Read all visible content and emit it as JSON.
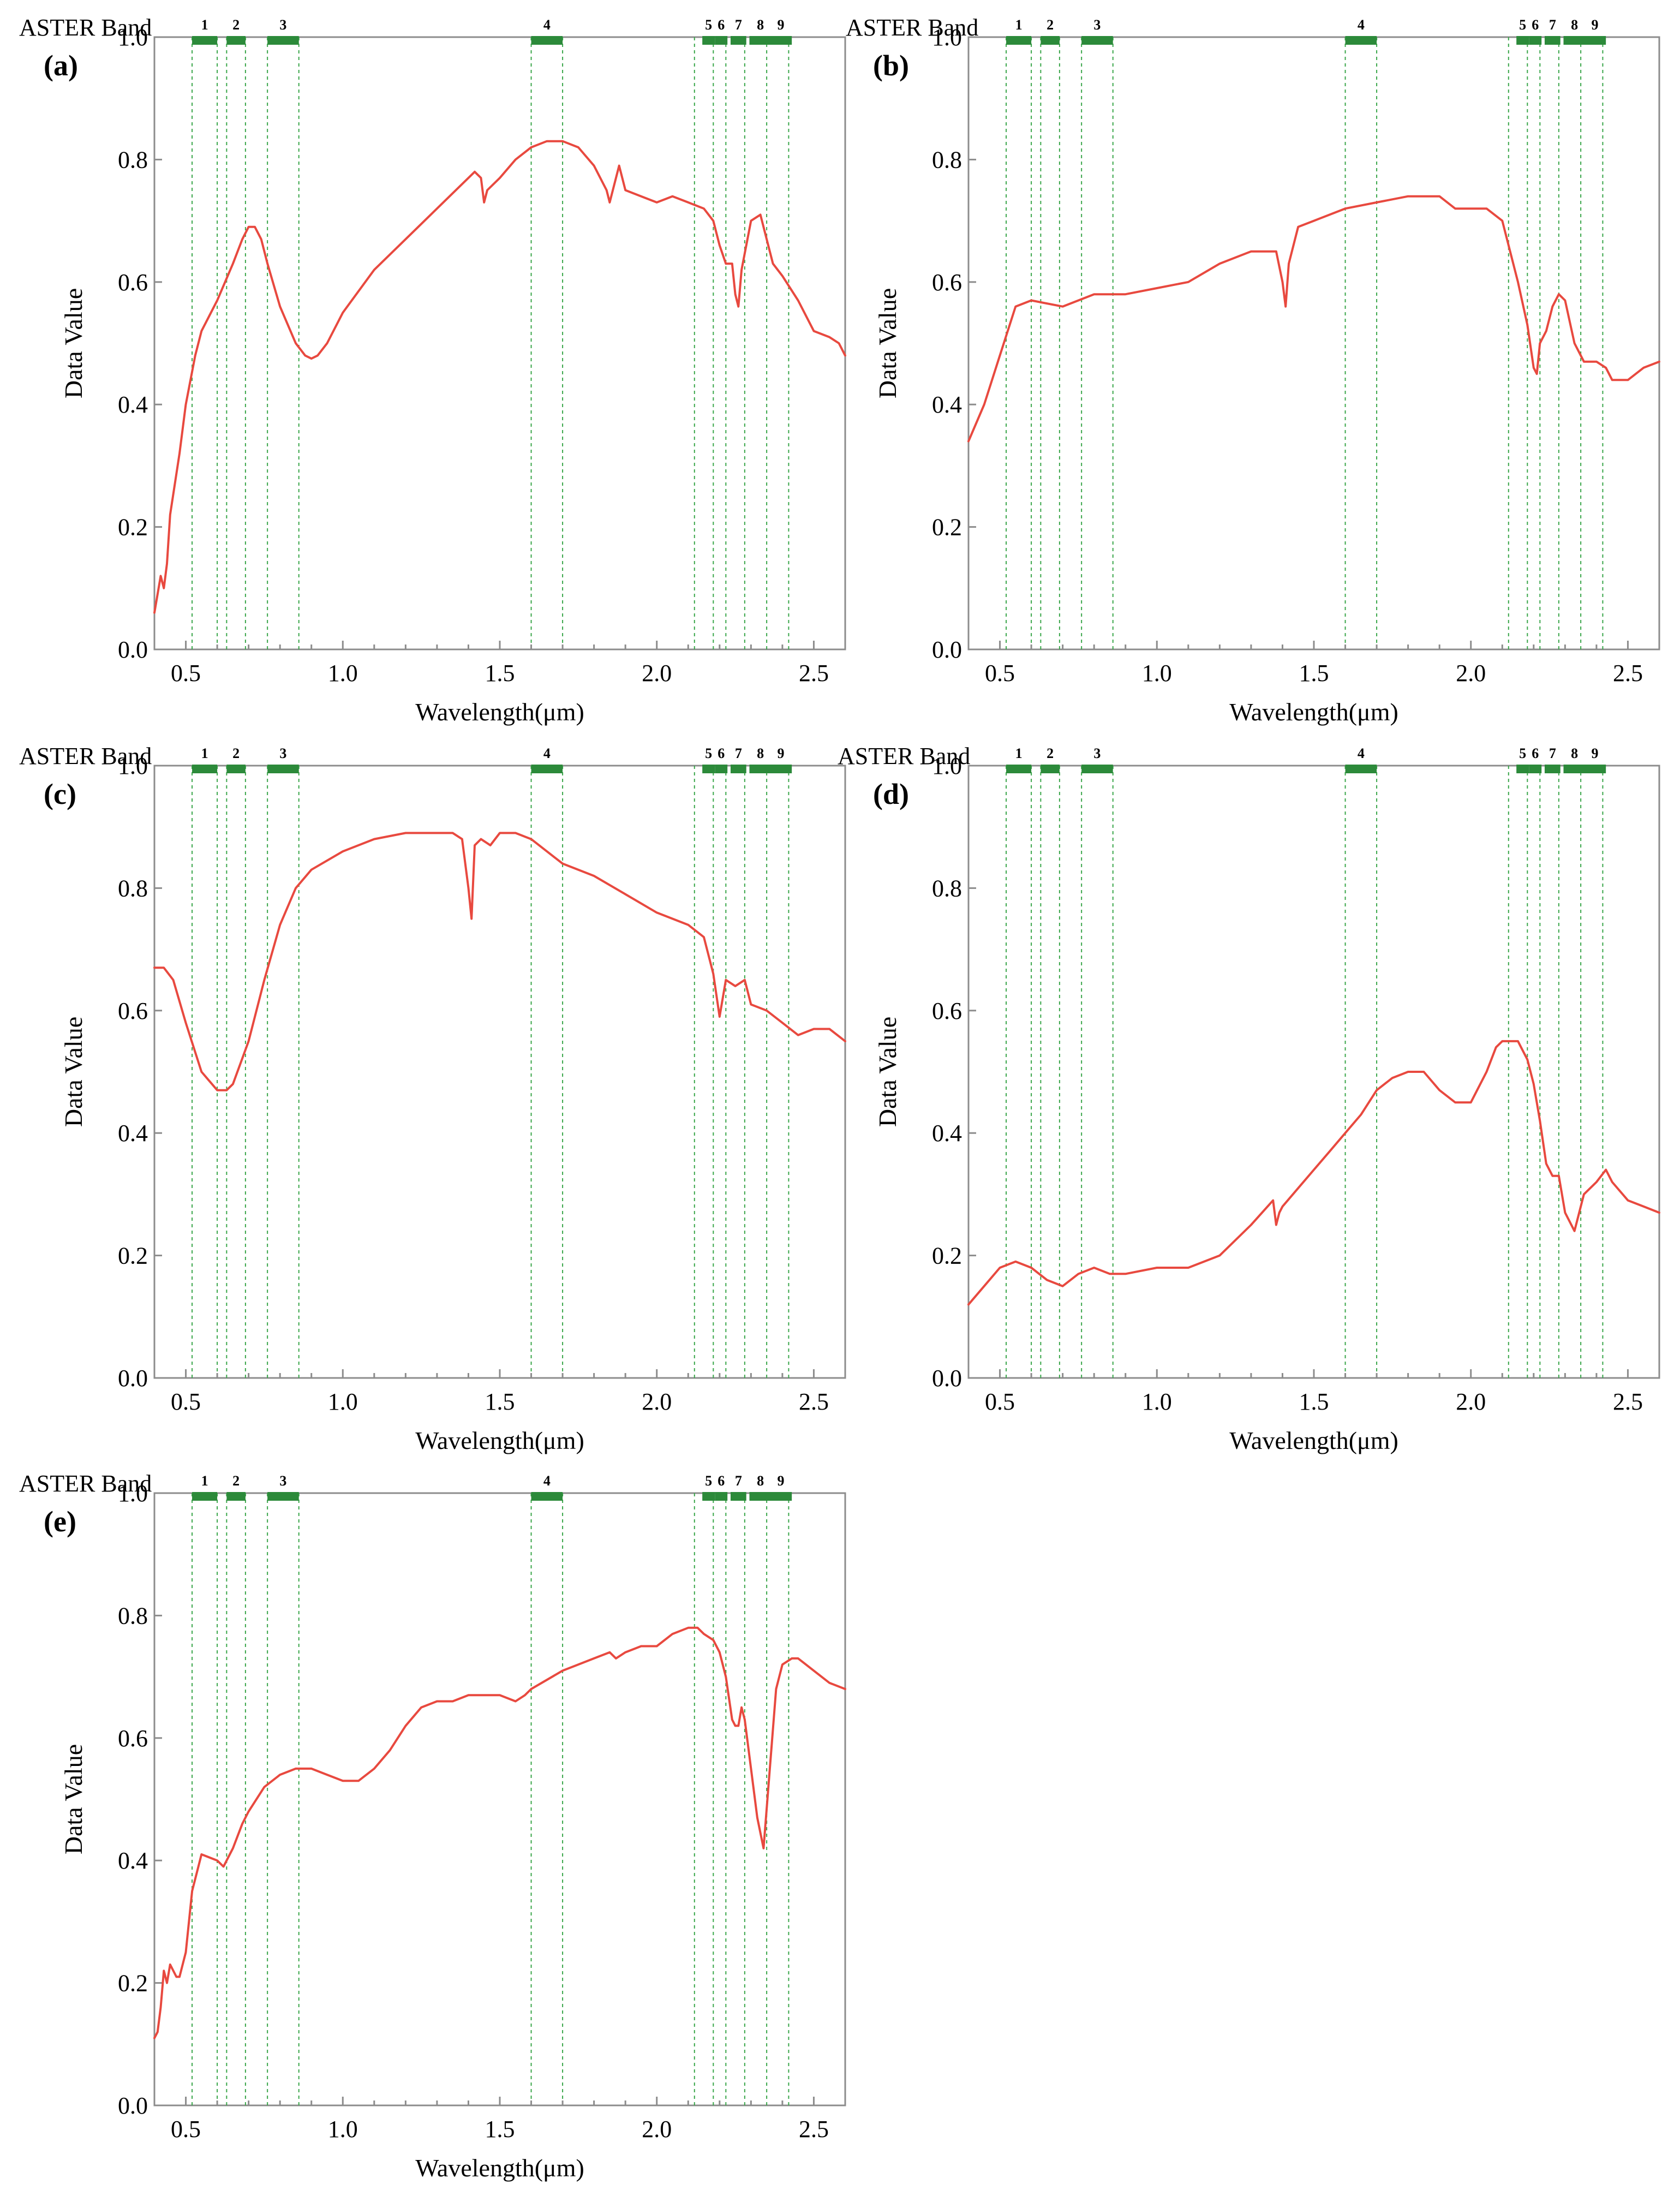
{
  "band_title": "ASTER Band",
  "colors": {
    "spectrum": "#e8493f",
    "band": "#2c8a3a",
    "axis": "#8c8c8c",
    "guide": "#3aa64a"
  },
  "chart_data": [
    {
      "panel": "(a)",
      "type": "line",
      "xlabel": "Wavelength(μm)",
      "ylabel": "Data Value",
      "xlim": [
        0.4,
        2.6
      ],
      "ylim": [
        0.0,
        1.0
      ],
      "xticks": [
        "0.5",
        "1.0",
        "1.5",
        "2.0",
        "2.5"
      ],
      "yticks": [
        "0.0",
        "0.2",
        "0.4",
        "0.6",
        "0.8",
        "1.0"
      ],
      "aster_bands": [
        {
          "label": "1",
          "range": [
            0.52,
            0.6
          ]
        },
        {
          "label": "2",
          "range": [
            0.63,
            0.69
          ]
        },
        {
          "label": "3",
          "range": [
            0.76,
            0.86
          ]
        },
        {
          "label": "4",
          "range": [
            1.6,
            1.7
          ]
        },
        {
          "label": "5",
          "range": [
            2.145,
            2.185
          ]
        },
        {
          "label": "6",
          "range": [
            2.185,
            2.225
          ]
        },
        {
          "label": "7",
          "range": [
            2.235,
            2.285
          ]
        },
        {
          "label": "8",
          "range": [
            2.295,
            2.365
          ]
        },
        {
          "label": "9",
          "range": [
            2.36,
            2.43
          ]
        }
      ],
      "guide_lines": [
        0.52,
        0.6,
        0.63,
        0.69,
        0.76,
        0.86,
        1.6,
        1.7,
        2.12,
        2.18,
        2.22,
        2.28,
        2.35,
        2.42
      ],
      "x": [
        0.4,
        0.42,
        0.43,
        0.44,
        0.45,
        0.48,
        0.5,
        0.53,
        0.55,
        0.6,
        0.65,
        0.68,
        0.7,
        0.72,
        0.74,
        0.76,
        0.8,
        0.85,
        0.88,
        0.9,
        0.92,
        0.95,
        1.0,
        1.1,
        1.2,
        1.3,
        1.38,
        1.42,
        1.44,
        1.45,
        1.46,
        1.5,
        1.55,
        1.6,
        1.65,
        1.7,
        1.75,
        1.8,
        1.84,
        1.85,
        1.87,
        1.88,
        1.9,
        1.95,
        2.0,
        2.05,
        2.1,
        2.15,
        2.18,
        2.2,
        2.22,
        2.24,
        2.25,
        2.26,
        2.27,
        2.3,
        2.33,
        2.35,
        2.37,
        2.4,
        2.45,
        2.5,
        2.55,
        2.58,
        2.6
      ],
      "y": [
        0.06,
        0.12,
        0.1,
        0.14,
        0.22,
        0.32,
        0.4,
        0.48,
        0.52,
        0.57,
        0.63,
        0.67,
        0.69,
        0.69,
        0.67,
        0.63,
        0.56,
        0.5,
        0.48,
        0.475,
        0.48,
        0.5,
        0.55,
        0.62,
        0.67,
        0.72,
        0.76,
        0.78,
        0.77,
        0.73,
        0.75,
        0.77,
        0.8,
        0.82,
        0.83,
        0.83,
        0.82,
        0.79,
        0.75,
        0.73,
        0.77,
        0.79,
        0.75,
        0.74,
        0.73,
        0.74,
        0.73,
        0.72,
        0.7,
        0.66,
        0.63,
        0.63,
        0.58,
        0.56,
        0.62,
        0.7,
        0.71,
        0.67,
        0.63,
        0.61,
        0.57,
        0.52,
        0.51,
        0.5,
        0.48
      ]
    },
    {
      "panel": "(b)",
      "type": "line",
      "xlabel": "Wavelength(μm)",
      "ylabel": "Data Value",
      "xlim": [
        0.4,
        2.6
      ],
      "ylim": [
        0.0,
        1.0
      ],
      "xticks": [
        "0.5",
        "1.0",
        "1.5",
        "2.0",
        "2.5"
      ],
      "yticks": [
        "0.0",
        "0.2",
        "0.4",
        "0.6",
        "0.8",
        "1.0"
      ],
      "aster_bands": [
        {
          "label": "1",
          "range": [
            0.52,
            0.6
          ]
        },
        {
          "label": "2",
          "range": [
            0.63,
            0.69
          ]
        },
        {
          "label": "3",
          "range": [
            0.76,
            0.86
          ]
        },
        {
          "label": "4",
          "range": [
            1.6,
            1.7
          ]
        },
        {
          "label": "5",
          "range": [
            2.145,
            2.185
          ]
        },
        {
          "label": "6",
          "range": [
            2.185,
            2.225
          ]
        },
        {
          "label": "7",
          "range": [
            2.235,
            2.285
          ]
        },
        {
          "label": "8",
          "range": [
            2.295,
            2.365
          ]
        },
        {
          "label": "9",
          "range": [
            2.36,
            2.43
          ]
        }
      ],
      "guide_lines": [
        0.52,
        0.6,
        0.63,
        0.69,
        0.76,
        0.86,
        1.6,
        1.7,
        2.12,
        2.18,
        2.22,
        2.28,
        2.35,
        2.42
      ],
      "x": [
        0.4,
        0.45,
        0.5,
        0.55,
        0.6,
        0.7,
        0.8,
        0.9,
        1.0,
        1.1,
        1.2,
        1.3,
        1.38,
        1.4,
        1.41,
        1.42,
        1.45,
        1.5,
        1.6,
        1.7,
        1.8,
        1.9,
        1.95,
        2.0,
        2.05,
        2.1,
        2.15,
        2.18,
        2.2,
        2.21,
        2.22,
        2.24,
        2.26,
        2.28,
        2.3,
        2.33,
        2.36,
        2.4,
        2.43,
        2.45,
        2.5,
        2.55,
        2.6
      ],
      "y": [
        0.34,
        0.4,
        0.48,
        0.56,
        0.57,
        0.56,
        0.58,
        0.58,
        0.59,
        0.6,
        0.63,
        0.65,
        0.65,
        0.6,
        0.56,
        0.63,
        0.69,
        0.7,
        0.72,
        0.73,
        0.74,
        0.74,
        0.72,
        0.72,
        0.72,
        0.7,
        0.6,
        0.53,
        0.46,
        0.45,
        0.5,
        0.52,
        0.56,
        0.58,
        0.57,
        0.5,
        0.47,
        0.47,
        0.46,
        0.44,
        0.44,
        0.46,
        0.47
      ]
    },
    {
      "panel": "(c)",
      "type": "line",
      "xlabel": "Wavelength(μm)",
      "ylabel": "Data Value",
      "xlim": [
        0.4,
        2.6
      ],
      "ylim": [
        0.0,
        1.0
      ],
      "xticks": [
        "0.5",
        "1.0",
        "1.5",
        "2.0",
        "2.5"
      ],
      "yticks": [
        "0.0",
        "0.2",
        "0.4",
        "0.6",
        "0.8",
        "1.0"
      ],
      "aster_bands": [
        {
          "label": "1",
          "range": [
            0.52,
            0.6
          ]
        },
        {
          "label": "2",
          "range": [
            0.63,
            0.69
          ]
        },
        {
          "label": "3",
          "range": [
            0.76,
            0.86
          ]
        },
        {
          "label": "4",
          "range": [
            1.6,
            1.7
          ]
        },
        {
          "label": "5",
          "range": [
            2.145,
            2.185
          ]
        },
        {
          "label": "6",
          "range": [
            2.185,
            2.225
          ]
        },
        {
          "label": "7",
          "range": [
            2.235,
            2.285
          ]
        },
        {
          "label": "8",
          "range": [
            2.295,
            2.365
          ]
        },
        {
          "label": "9",
          "range": [
            2.36,
            2.43
          ]
        }
      ],
      "guide_lines": [
        0.52,
        0.6,
        0.63,
        0.69,
        0.76,
        0.86,
        1.6,
        1.7,
        2.12,
        2.18,
        2.22,
        2.28,
        2.35,
        2.42
      ],
      "x": [
        0.4,
        0.43,
        0.46,
        0.5,
        0.55,
        0.6,
        0.63,
        0.65,
        0.7,
        0.75,
        0.8,
        0.85,
        0.9,
        1.0,
        1.1,
        1.2,
        1.3,
        1.35,
        1.38,
        1.4,
        1.41,
        1.42,
        1.44,
        1.47,
        1.5,
        1.55,
        1.6,
        1.65,
        1.7,
        1.8,
        1.9,
        2.0,
        2.1,
        2.15,
        2.18,
        2.2,
        2.22,
        2.25,
        2.28,
        2.3,
        2.35,
        2.4,
        2.45,
        2.5,
        2.55,
        2.6
      ],
      "y": [
        0.67,
        0.67,
        0.65,
        0.58,
        0.5,
        0.47,
        0.47,
        0.48,
        0.55,
        0.65,
        0.74,
        0.8,
        0.83,
        0.86,
        0.88,
        0.89,
        0.89,
        0.89,
        0.88,
        0.8,
        0.75,
        0.87,
        0.88,
        0.87,
        0.89,
        0.89,
        0.88,
        0.86,
        0.84,
        0.82,
        0.79,
        0.76,
        0.74,
        0.72,
        0.66,
        0.59,
        0.65,
        0.64,
        0.65,
        0.61,
        0.6,
        0.58,
        0.56,
        0.57,
        0.57,
        0.55
      ]
    },
    {
      "panel": "(d)",
      "type": "line",
      "xlabel": "Wavelength(μm)",
      "ylabel": "Data Value",
      "xlim": [
        0.4,
        2.6
      ],
      "ylim": [
        0.0,
        1.0
      ],
      "xticks": [
        "0.5",
        "1.0",
        "1.5",
        "2.0",
        "2.5"
      ],
      "yticks": [
        "0.0",
        "0.2",
        "0.4",
        "0.6",
        "0.8",
        "1.0"
      ],
      "aster_bands": [
        {
          "label": "1",
          "range": [
            0.52,
            0.6
          ]
        },
        {
          "label": "2",
          "range": [
            0.63,
            0.69
          ]
        },
        {
          "label": "3",
          "range": [
            0.76,
            0.86
          ]
        },
        {
          "label": "4",
          "range": [
            1.6,
            1.7
          ]
        },
        {
          "label": "5",
          "range": [
            2.145,
            2.185
          ]
        },
        {
          "label": "6",
          "range": [
            2.185,
            2.225
          ]
        },
        {
          "label": "7",
          "range": [
            2.235,
            2.285
          ]
        },
        {
          "label": "8",
          "range": [
            2.295,
            2.365
          ]
        },
        {
          "label": "9",
          "range": [
            2.36,
            2.43
          ]
        }
      ],
      "guide_lines": [
        0.52,
        0.6,
        0.63,
        0.69,
        0.76,
        0.86,
        1.6,
        1.7,
        2.12,
        2.18,
        2.22,
        2.28,
        2.35,
        2.42
      ],
      "x": [
        0.4,
        0.45,
        0.5,
        0.55,
        0.6,
        0.65,
        0.7,
        0.75,
        0.8,
        0.85,
        0.9,
        1.0,
        1.05,
        1.1,
        1.2,
        1.3,
        1.37,
        1.38,
        1.39,
        1.4,
        1.45,
        1.5,
        1.55,
        1.6,
        1.65,
        1.7,
        1.75,
        1.8,
        1.85,
        1.9,
        1.95,
        2.0,
        2.05,
        2.08,
        2.1,
        2.12,
        2.15,
        2.18,
        2.2,
        2.22,
        2.24,
        2.26,
        2.28,
        2.3,
        2.33,
        2.36,
        2.4,
        2.43,
        2.45,
        2.5,
        2.55,
        2.6
      ],
      "y": [
        0.12,
        0.15,
        0.18,
        0.19,
        0.18,
        0.16,
        0.15,
        0.17,
        0.18,
        0.17,
        0.17,
        0.18,
        0.18,
        0.18,
        0.2,
        0.25,
        0.29,
        0.25,
        0.27,
        0.28,
        0.31,
        0.34,
        0.37,
        0.4,
        0.43,
        0.47,
        0.49,
        0.5,
        0.5,
        0.47,
        0.45,
        0.45,
        0.5,
        0.54,
        0.55,
        0.55,
        0.55,
        0.52,
        0.48,
        0.42,
        0.35,
        0.33,
        0.33,
        0.27,
        0.24,
        0.3,
        0.32,
        0.34,
        0.32,
        0.29,
        0.28,
        0.27
      ]
    },
    {
      "panel": "(e)",
      "type": "line",
      "xlabel": "Wavelength(μm)",
      "ylabel": "Data Value",
      "xlim": [
        0.4,
        2.6
      ],
      "ylim": [
        0.0,
        1.0
      ],
      "xticks": [
        "0.5",
        "1.0",
        "1.5",
        "2.0",
        "2.5"
      ],
      "yticks": [
        "0.0",
        "0.2",
        "0.4",
        "0.6",
        "0.8",
        "1.0"
      ],
      "aster_bands": [
        {
          "label": "1",
          "range": [
            0.52,
            0.6
          ]
        },
        {
          "label": "2",
          "range": [
            0.63,
            0.69
          ]
        },
        {
          "label": "3",
          "range": [
            0.76,
            0.86
          ]
        },
        {
          "label": "4",
          "range": [
            1.6,
            1.7
          ]
        },
        {
          "label": "5",
          "range": [
            2.145,
            2.185
          ]
        },
        {
          "label": "6",
          "range": [
            2.185,
            2.225
          ]
        },
        {
          "label": "7",
          "range": [
            2.235,
            2.285
          ]
        },
        {
          "label": "8",
          "range": [
            2.295,
            2.365
          ]
        },
        {
          "label": "9",
          "range": [
            2.36,
            2.43
          ]
        }
      ],
      "guide_lines": [
        0.52,
        0.6,
        0.63,
        0.69,
        0.76,
        0.86,
        1.6,
        1.7,
        2.12,
        2.18,
        2.22,
        2.28,
        2.35,
        2.42
      ],
      "x": [
        0.4,
        0.41,
        0.42,
        0.43,
        0.44,
        0.45,
        0.47,
        0.48,
        0.5,
        0.52,
        0.55,
        0.6,
        0.62,
        0.65,
        0.68,
        0.7,
        0.75,
        0.8,
        0.85,
        0.9,
        0.95,
        1.0,
        1.05,
        1.1,
        1.15,
        1.2,
        1.25,
        1.3,
        1.35,
        1.4,
        1.45,
        1.5,
        1.55,
        1.58,
        1.6,
        1.7,
        1.8,
        1.85,
        1.87,
        1.9,
        1.95,
        2.0,
        2.05,
        2.1,
        2.13,
        2.15,
        2.18,
        2.2,
        2.22,
        2.24,
        2.25,
        2.26,
        2.27,
        2.28,
        2.3,
        2.32,
        2.34,
        2.36,
        2.38,
        2.4,
        2.43,
        2.45,
        2.5,
        2.55,
        2.6
      ],
      "y": [
        0.11,
        0.12,
        0.16,
        0.22,
        0.2,
        0.23,
        0.21,
        0.21,
        0.25,
        0.35,
        0.41,
        0.4,
        0.39,
        0.42,
        0.46,
        0.48,
        0.52,
        0.54,
        0.55,
        0.55,
        0.54,
        0.53,
        0.53,
        0.55,
        0.58,
        0.62,
        0.65,
        0.66,
        0.66,
        0.67,
        0.67,
        0.67,
        0.66,
        0.67,
        0.68,
        0.71,
        0.73,
        0.74,
        0.73,
        0.74,
        0.75,
        0.75,
        0.77,
        0.78,
        0.78,
        0.77,
        0.76,
        0.74,
        0.7,
        0.63,
        0.62,
        0.62,
        0.65,
        0.63,
        0.55,
        0.47,
        0.42,
        0.55,
        0.68,
        0.72,
        0.73,
        0.73,
        0.71,
        0.69,
        0.68
      ]
    }
  ]
}
